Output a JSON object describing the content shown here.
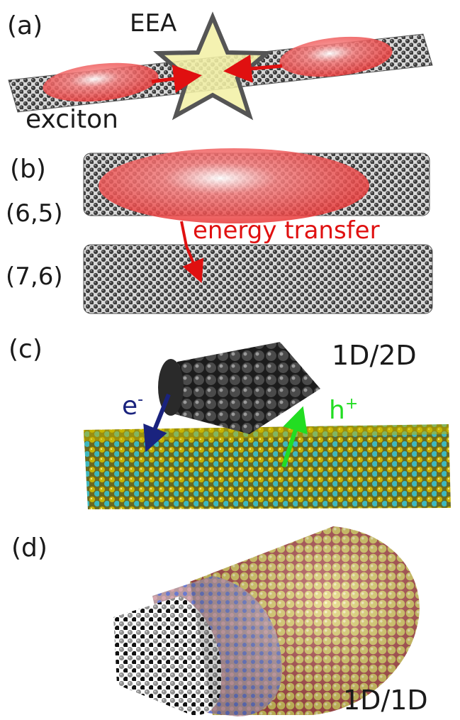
{
  "panels": {
    "a": {
      "label": "(a)",
      "star_text": "EEA",
      "exciton_text": "exciton"
    },
    "b": {
      "label": "(b)",
      "top_tube": "(6,5)",
      "bottom_tube": "(7,6)",
      "arrow_text": "energy transfer"
    },
    "c": {
      "label": "(c)",
      "dim_text": "1D/2D",
      "electron": "e",
      "electron_sup": "-",
      "hole": "h",
      "hole_sup": "+"
    },
    "d": {
      "label": "(d)",
      "dim_text": "1D/1D"
    }
  },
  "colors": {
    "carbon": "#3a3a3a",
    "exciton": "#f05050",
    "star_fill": "#f3f0a6",
    "star_stroke": "#555555",
    "red_arrow": "#e01010",
    "electron_arrow": "#1a237e",
    "electron_text": "#1a237e",
    "hole_arrow": "#22dd22",
    "hole_text": "#22dd22",
    "substrate_yellow": "#c8b400",
    "substrate_cyan": "#3cb8c0",
    "shell_yellow": "#e0d060",
    "shell_pink": "#d89aa0",
    "shell_blue": "#6a7ad0",
    "core_gray": "#8a8a8a"
  }
}
